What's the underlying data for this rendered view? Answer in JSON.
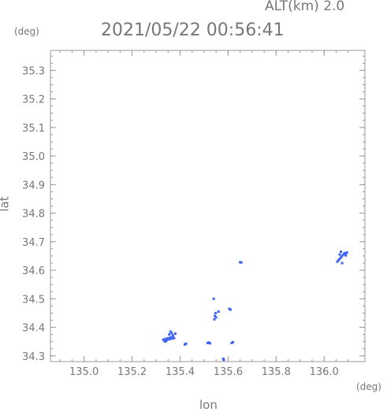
{
  "header": {
    "altitude_label": "ALT(km) 2.0",
    "datetime": "2021/05/22 00:56:41"
  },
  "chart_data": {
    "type": "scatter",
    "title": "2021/05/22 00:56:41",
    "subtitle": "ALT(km) 2.0",
    "xlabel": "lon",
    "ylabel": "lat",
    "xunit": "(deg)",
    "yunit": "(deg)",
    "xlim": [
      134.86,
      136.17
    ],
    "ylim": [
      34.28,
      35.37
    ],
    "xticks": [
      "135.0",
      "135.2",
      "135.4",
      "135.6",
      "135.8",
      "136.0"
    ],
    "yticks": [
      "34.3",
      "34.4",
      "34.5",
      "34.6",
      "34.7",
      "34.8",
      "34.9",
      "35.0",
      "35.1",
      "35.2",
      "35.3"
    ],
    "grid": false,
    "marker_color": "#3f63f0",
    "series": [
      {
        "points": [
          [
            135.33,
            34.357
          ],
          [
            135.335,
            34.352
          ],
          [
            135.34,
            34.36
          ],
          [
            135.345,
            34.355
          ],
          [
            135.35,
            34.362
          ],
          [
            135.355,
            34.358
          ],
          [
            135.36,
            34.365
          ],
          [
            135.365,
            34.36
          ],
          [
            135.37,
            34.368
          ],
          [
            135.375,
            34.362
          ],
          [
            135.355,
            34.375
          ],
          [
            135.365,
            34.38
          ],
          [
            135.36,
            34.385
          ],
          [
            135.37,
            34.372
          ],
          [
            135.38,
            34.378
          ],
          [
            135.34,
            34.35
          ],
          [
            135.42,
            34.34
          ],
          [
            135.425,
            34.343
          ],
          [
            135.515,
            34.345
          ],
          [
            135.52,
            34.347
          ],
          [
            135.525,
            34.344
          ],
          [
            135.545,
            34.44
          ],
          [
            135.548,
            34.45
          ],
          [
            135.55,
            34.435
          ],
          [
            135.543,
            34.428
          ],
          [
            135.56,
            34.455
          ],
          [
            135.54,
            34.5
          ],
          [
            135.605,
            34.465
          ],
          [
            135.61,
            34.462
          ],
          [
            135.615,
            34.345
          ],
          [
            135.62,
            34.348
          ],
          [
            135.58,
            34.29
          ],
          [
            135.582,
            34.286
          ],
          [
            135.65,
            34.628
          ],
          [
            135.655,
            34.627
          ],
          [
            136.065,
            34.64
          ],
          [
            136.07,
            34.645
          ],
          [
            136.075,
            34.65
          ],
          [
            136.08,
            34.655
          ],
          [
            136.085,
            34.66
          ],
          [
            136.09,
            34.658
          ],
          [
            136.095,
            34.662
          ],
          [
            136.06,
            34.635
          ],
          [
            136.055,
            34.63
          ],
          [
            136.065,
            34.655
          ],
          [
            136.07,
            34.665
          ],
          [
            136.075,
            34.625
          ],
          [
            136.09,
            34.652
          ]
        ]
      }
    ]
  }
}
